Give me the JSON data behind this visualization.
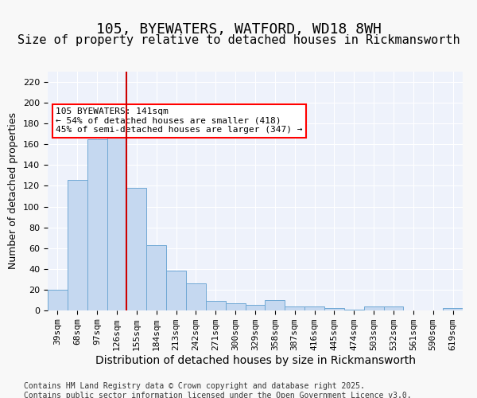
{
  "title1": "105, BYEWATERS, WATFORD, WD18 8WH",
  "title2": "Size of property relative to detached houses in Rickmansworth",
  "xlabel": "Distribution of detached houses by size in Rickmansworth",
  "ylabel": "Number of detached properties",
  "categories": [
    "39sqm",
    "68sqm",
    "97sqm",
    "126sqm",
    "155sqm",
    "184sqm",
    "213sqm",
    "242sqm",
    "271sqm",
    "300sqm",
    "329sqm",
    "358sqm",
    "387sqm",
    "416sqm",
    "445sqm",
    "474sqm",
    "503sqm",
    "532sqm",
    "561sqm",
    "590sqm",
    "619sqm"
  ],
  "values": [
    20,
    126,
    165,
    174,
    118,
    63,
    38,
    26,
    9,
    7,
    5,
    10,
    4,
    4,
    2,
    1,
    4,
    4,
    0,
    0,
    2
  ],
  "bar_color": "#c5d8f0",
  "bar_edge_color": "#6fa8d4",
  "annotation_text": "105 BYEWATERS: 141sqm\n← 54% of detached houses are smaller (418)\n45% of semi-detached houses are larger (347) →",
  "annotation_bar_index": 3,
  "vline_color": "#cc0000",
  "vline_x": 3,
  "ylim": [
    0,
    230
  ],
  "yticks": [
    0,
    20,
    40,
    60,
    80,
    100,
    120,
    140,
    160,
    180,
    200,
    220
  ],
  "background_color": "#eef2fb",
  "grid_color": "#ffffff",
  "footer": "Contains HM Land Registry data © Crown copyright and database right 2025.\nContains public sector information licensed under the Open Government Licence v3.0.",
  "title1_fontsize": 13,
  "title2_fontsize": 11,
  "xlabel_fontsize": 10,
  "ylabel_fontsize": 9,
  "tick_fontsize": 8,
  "annotation_fontsize": 8,
  "footer_fontsize": 7
}
